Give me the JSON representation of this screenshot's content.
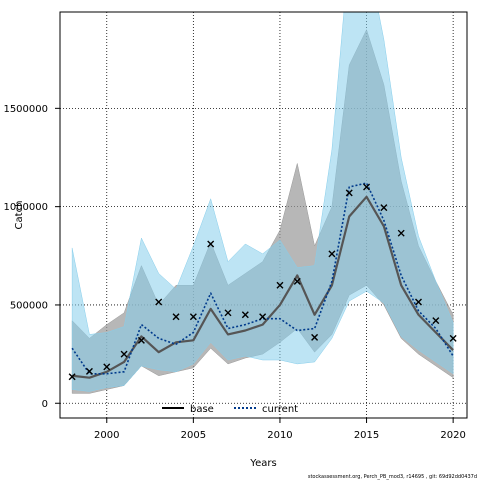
{
  "chart_data": {
    "type": "line",
    "xlabel": "Years",
    "ylabel": "Catch",
    "xlim": [
      1997.3,
      2020.8
    ],
    "ylim": [
      -75000,
      1990000
    ],
    "xticks": [
      2000,
      2005,
      2010,
      2015,
      2020
    ],
    "yticks": [
      0,
      500000,
      1000000,
      1500000
    ],
    "tick_labels_x": [
      "2000",
      "2005",
      "2010",
      "2015",
      "2020"
    ],
    "tick_labels_y": [
      "0",
      "500000",
      "1000000",
      "1500000"
    ],
    "grid": true,
    "legend_position": "bottom-center",
    "footer": "stockassessment.org, Perch_PB_mod3, r14695 , git: 69d92dd0437d",
    "x": [
      1998,
      1999,
      2000,
      2001,
      2002,
      2003,
      2004,
      2005,
      2006,
      2007,
      2008,
      2009,
      2010,
      2011,
      2012,
      2013,
      2014,
      2015,
      2016,
      2017,
      2018,
      2019,
      2020
    ],
    "observed": {
      "marker": "x",
      "values": [
        135000,
        162000,
        185000,
        250000,
        320000,
        515000,
        440000,
        440000,
        810000,
        460000,
        450000,
        440000,
        600000,
        620000,
        335000,
        760000,
        1070000,
        1100000,
        995000,
        865000,
        515000,
        420000,
        330000
      ]
    },
    "series": [
      {
        "name": "base",
        "style": "solid",
        "color": "#555555",
        "band_color": "#999999",
        "values": [
          140000,
          130000,
          160000,
          210000,
          340000,
          260000,
          310000,
          320000,
          480000,
          350000,
          370000,
          400000,
          500000,
          650000,
          450000,
          600000,
          950000,
          1050000,
          900000,
          600000,
          450000,
          360000,
          270000
        ],
        "lower": [
          50000,
          50000,
          70000,
          90000,
          190000,
          140000,
          160000,
          180000,
          280000,
          200000,
          230000,
          250000,
          310000,
          380000,
          260000,
          350000,
          550000,
          600000,
          500000,
          330000,
          250000,
          190000,
          130000
        ],
        "upper": [
          420000,
          330000,
          400000,
          460000,
          700000,
          500000,
          600000,
          600000,
          820000,
          600000,
          660000,
          720000,
          880000,
          1220000,
          800000,
          1000000,
          1720000,
          1900000,
          1620000,
          1130000,
          800000,
          620000,
          450000
        ]
      },
      {
        "name": "current",
        "style": "dotted",
        "color": "#003a8c",
        "band_color": "#87ceeb",
        "values": [
          280000,
          150000,
          150000,
          160000,
          400000,
          330000,
          300000,
          360000,
          560000,
          380000,
          400000,
          430000,
          430000,
          370000,
          380000,
          620000,
          1100000,
          1120000,
          930000,
          650000,
          470000,
          380000,
          240000
        ],
        "lower": [
          70000,
          60000,
          80000,
          90000,
          190000,
          170000,
          160000,
          200000,
          310000,
          220000,
          240000,
          220000,
          220000,
          200000,
          210000,
          330000,
          520000,
          570000,
          510000,
          340000,
          270000,
          210000,
          150000
        ],
        "upper": [
          790000,
          350000,
          360000,
          390000,
          840000,
          660000,
          580000,
          800000,
          1040000,
          720000,
          810000,
          760000,
          830000,
          690000,
          700000,
          1290000,
          2300000,
          2300000,
          1850000,
          1250000,
          850000,
          620000,
          410000
        ]
      }
    ]
  }
}
